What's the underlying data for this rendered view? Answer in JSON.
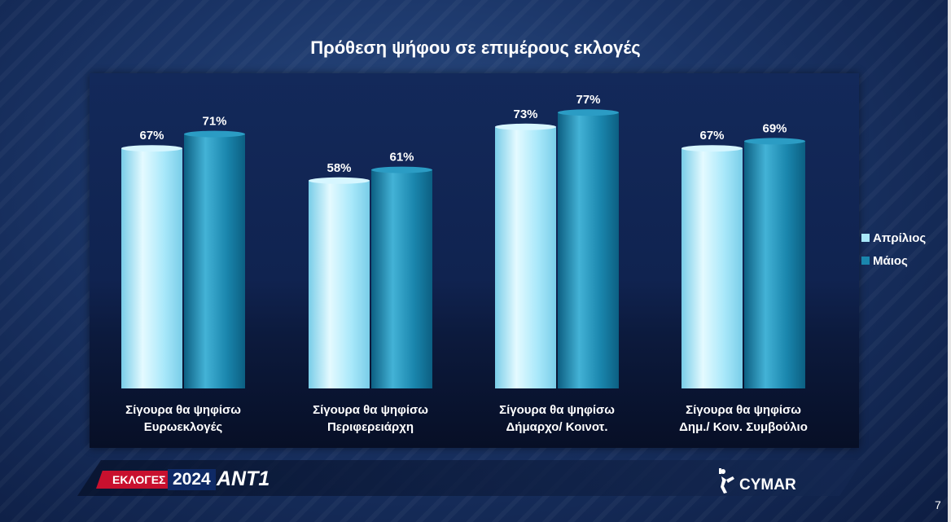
{
  "slide": {
    "page_number": "7",
    "brand": {
      "election_label": "ΕΚΛΟΓΕΣ",
      "year": "2024",
      "channel": "ANT1",
      "company": "CYMAR"
    }
  },
  "chart_data": {
    "type": "bar",
    "title": "Πρόθεση ψήφου σε επιμέρους εκλογές",
    "categories": [
      [
        "Σίγουρα θα ψηφίσω",
        "Ευρωεκλογές"
      ],
      [
        "Σίγουρα θα ψηφίσω",
        "Περιφερειάρχη"
      ],
      [
        "Σίγουρα θα ψηφίσω",
        "Δήμαρχο/ Κοινοτ."
      ],
      [
        "Σίγουρα θα ψηφίσω",
        "Δημ./ Κοιν. Συμβούλιο"
      ]
    ],
    "series": [
      {
        "name": "Απρίλιος",
        "values": [
          67,
          58,
          73,
          67
        ],
        "labels": [
          "67%",
          "58%",
          "73%",
          "67%"
        ],
        "color": "#a9e8fa"
      },
      {
        "name": "Μάιος",
        "values": [
          71,
          61,
          77,
          69
        ],
        "labels": [
          "71%",
          "61%",
          "77%",
          "69%"
        ],
        "color": "#1a86ad"
      }
    ],
    "ylim": [
      0,
      100
    ],
    "grid": false,
    "legend": "right"
  }
}
